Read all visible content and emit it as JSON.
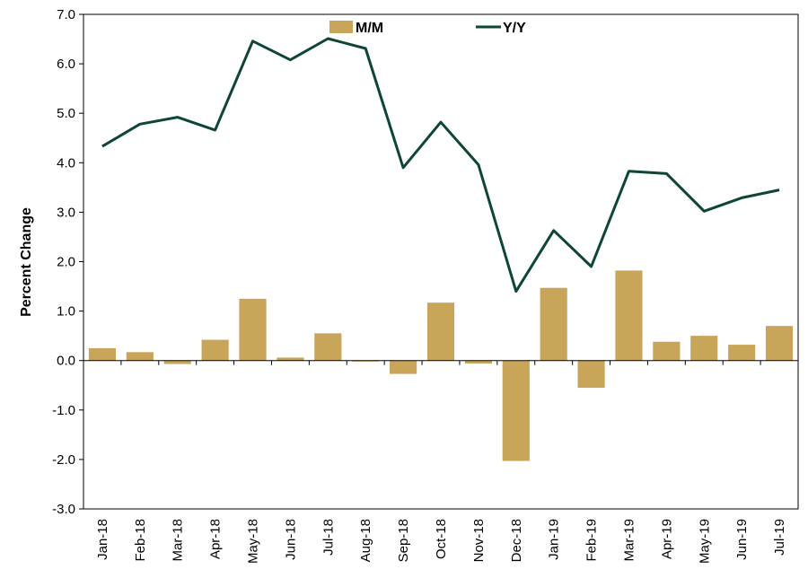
{
  "chart_data": {
    "type": "bar",
    "categories": [
      "Jan-18",
      "Feb-18",
      "Mar-18",
      "Apr-18",
      "May-18",
      "Jun-18",
      "Jul-18",
      "Aug-18",
      "Sep-18",
      "Oct-18",
      "Nov-18",
      "Dec-18",
      "Jan-19",
      "Feb-19",
      "Mar-19",
      "Apr-19",
      "May-19",
      "Jun-19",
      "Jul-19"
    ],
    "series": [
      {
        "name": "M/M",
        "type": "bar",
        "color": "#c9a55a",
        "values": [
          0.25,
          0.17,
          -0.07,
          0.42,
          1.25,
          0.06,
          0.55,
          -0.02,
          -0.27,
          1.17,
          -0.06,
          -2.03,
          1.47,
          -0.55,
          1.82,
          0.38,
          0.5,
          0.32,
          0.7
        ]
      },
      {
        "name": "Y/Y",
        "type": "line",
        "color": "#0e4632",
        "values": [
          4.33,
          4.78,
          4.92,
          4.66,
          6.46,
          6.08,
          6.51,
          6.31,
          3.9,
          4.82,
          3.96,
          1.4,
          2.63,
          1.9,
          3.83,
          3.78,
          3.02,
          3.29,
          3.45
        ]
      }
    ],
    "ylabel": "Percent Change",
    "xlabel": "",
    "ylim": [
      -3.0,
      7.0
    ],
    "ytick_step": 1.0,
    "ytick_labels": [
      "7.0",
      "6.0",
      "5.0",
      "4.0",
      "3.0",
      "2.0",
      "1.0",
      "0.0",
      "-1.0",
      "-2.0",
      "-3.0"
    ],
    "legend_position": "top-center",
    "grid": false
  }
}
